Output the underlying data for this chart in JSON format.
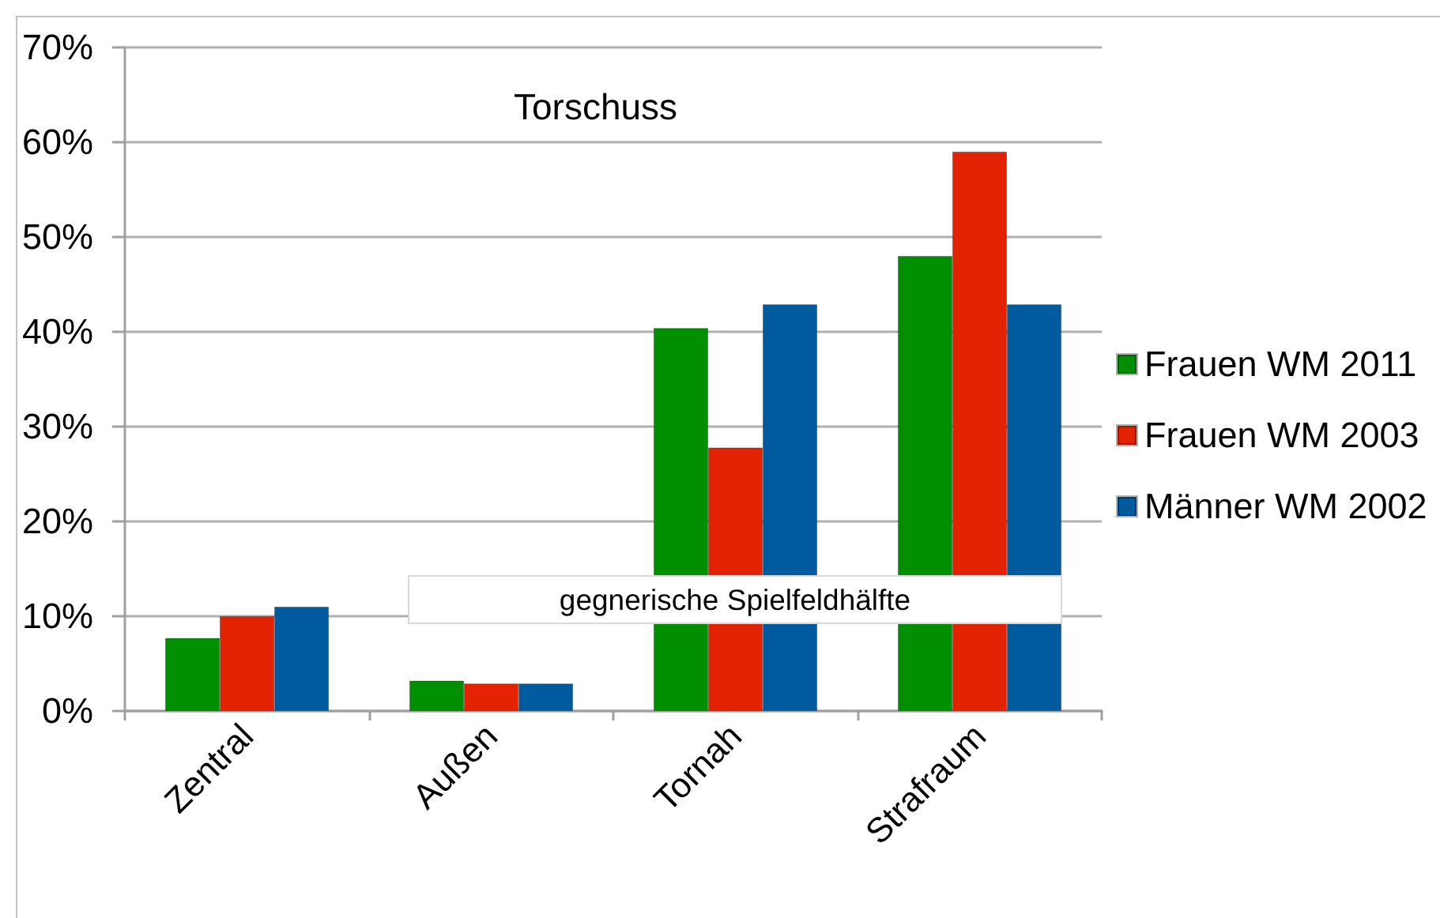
{
  "chart_data": {
    "type": "bar",
    "title": "Torschuss",
    "categories": [
      "Zentral",
      "Außen",
      "Tornah",
      "Strafraum"
    ],
    "series": [
      {
        "name": "Frauen WM 2011",
        "color": "#008f00",
        "values": [
          7.7,
          3.2,
          40.4,
          48.0
        ]
      },
      {
        "name": "Frauen WM 2003",
        "color": "#e22200",
        "values": [
          10,
          2.9,
          27.8,
          59
        ]
      },
      {
        "name": "Männer WM 2002",
        "color": "#005a9e",
        "values": [
          11,
          2.9,
          42.9,
          42.9
        ]
      }
    ],
    "ylim": [
      0,
      70
    ],
    "yticks": [
      {
        "value": 0,
        "label": "0%"
      },
      {
        "value": 10,
        "label": "10%"
      },
      {
        "value": 20,
        "label": "20%"
      },
      {
        "value": 30,
        "label": "30%"
      },
      {
        "value": 40,
        "label": "40%"
      },
      {
        "value": 50,
        "label": "50%"
      },
      {
        "value": 60,
        "label": "60%"
      },
      {
        "value": 70,
        "label": "70%"
      }
    ],
    "grid": "y",
    "legend": "right",
    "annotations": [
      "gegnerische Spielfeldhälfte"
    ]
  }
}
